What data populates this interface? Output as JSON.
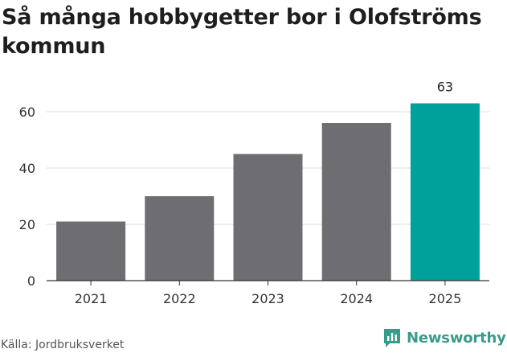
{
  "title": "Så många hobbygetter bor i Olofströms kommun",
  "source": "Källa: Jordbruksverket",
  "brand": {
    "name": "Newsworthy",
    "icon": "newsworthy-logo-icon",
    "color": "#3a9b8c"
  },
  "chart_data": {
    "type": "bar",
    "categories": [
      "2021",
      "2022",
      "2023",
      "2024",
      "2025"
    ],
    "values": [
      21,
      30,
      45,
      56,
      63
    ],
    "ylim": [
      0,
      70
    ],
    "yticks": [
      0,
      20,
      40,
      60
    ],
    "ytick_labels": [
      "0",
      "20",
      "40",
      "60"
    ],
    "data_labels": [
      null,
      null,
      null,
      null,
      "63"
    ],
    "bar_color": "#6e6d71",
    "highlight_index": 4,
    "highlight_color": "#00a19a",
    "grid": true,
    "legend": "none"
  }
}
